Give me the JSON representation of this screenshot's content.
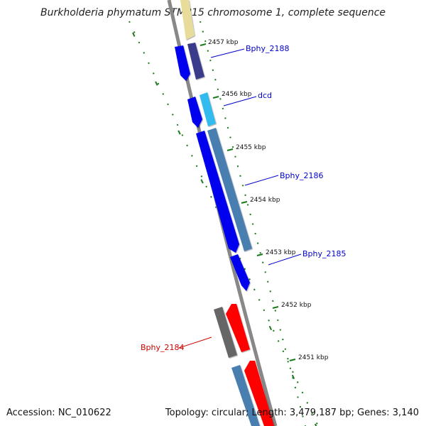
{
  "title": "Burkholderia phymatum STM815 chromosome 1, complete sequence",
  "footer": {
    "accession": "Accession: NC_010622",
    "topology": "Topology: circular; Length: 3,479,187 bp; Genes: 3,140"
  },
  "ticks": [
    {
      "kbp": 2457,
      "label": "2457 kbp"
    },
    {
      "kbp": 2456,
      "label": "2456 kbp"
    },
    {
      "kbp": 2455,
      "label": "2455 kbp"
    },
    {
      "kbp": 2454,
      "label": "2454 kbp"
    },
    {
      "kbp": 2453,
      "label": "2453 kbp"
    },
    {
      "kbp": 2452,
      "label": "2452 kbp"
    },
    {
      "kbp": 2451,
      "label": "2451 kbp"
    }
  ],
  "gene_labels": [
    {
      "name": "Bphy_2188",
      "color": "#0000cc"
    },
    {
      "name": "dcd",
      "color": "#0000cc"
    },
    {
      "name": "Bphy_2186",
      "color": "#0000cc"
    },
    {
      "name": "Bphy_2185",
      "color": "#0000cc"
    },
    {
      "name": "Bphy_2184",
      "color": "#cc0000"
    }
  ],
  "colors": {
    "backbone": "#888888",
    "tick_green": "#1a7a1a",
    "cds_forward": "#0000ee",
    "cds_forward_shade": "#3a3a8c",
    "cds_light": "#33bbee",
    "cds_steel": "#4a7fb0",
    "cds_grey": "#666666",
    "cds_red": "#ff0000",
    "cds_yellow": "#e8dc9a"
  }
}
